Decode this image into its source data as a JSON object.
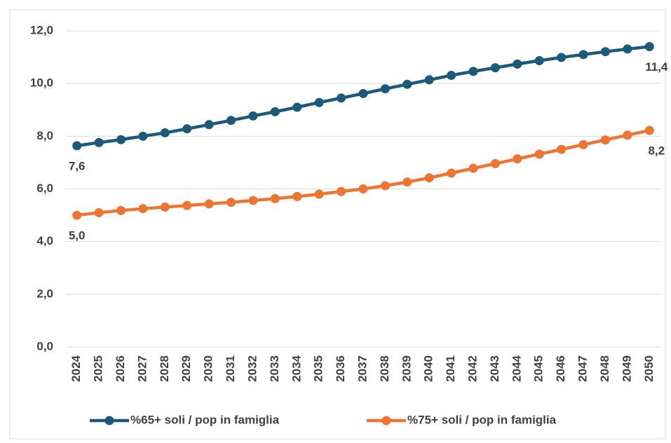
{
  "chart_data": {
    "type": "line",
    "categories": [
      "2024",
      "2025",
      "2026",
      "2027",
      "2028",
      "2029",
      "2030",
      "2031",
      "2032",
      "2033",
      "2034",
      "2035",
      "2036",
      "2037",
      "2038",
      "2039",
      "2040",
      "2041",
      "2042",
      "2043",
      "2044",
      "2045",
      "2046",
      "2047",
      "2048",
      "2049",
      "2050"
    ],
    "series": [
      {
        "name": "%65+ soli / pop in famiglia",
        "color": "#1b5a78",
        "values": [
          7.64,
          7.76,
          7.87,
          8.0,
          8.13,
          8.28,
          8.44,
          8.6,
          8.77,
          8.93,
          9.1,
          9.28,
          9.45,
          9.62,
          9.8,
          9.97,
          10.14,
          10.31,
          10.46,
          10.6,
          10.74,
          10.87,
          10.99,
          11.1,
          11.21,
          11.31,
          11.4
        ],
        "value_labels": [
          "7,6",
          null,
          null,
          null,
          null,
          null,
          null,
          null,
          null,
          null,
          null,
          null,
          null,
          null,
          null,
          null,
          null,
          null,
          null,
          null,
          null,
          null,
          null,
          null,
          null,
          null,
          "11,4"
        ]
      },
      {
        "name": "%75+ soli / pop in famiglia",
        "color": "#ee7434",
        "values": [
          5.0,
          5.1,
          5.18,
          5.25,
          5.31,
          5.37,
          5.43,
          5.49,
          5.56,
          5.63,
          5.71,
          5.8,
          5.9,
          6.0,
          6.12,
          6.26,
          6.42,
          6.6,
          6.78,
          6.96,
          7.14,
          7.32,
          7.5,
          7.68,
          7.86,
          8.04,
          8.22
        ],
        "value_labels": [
          "5,0",
          null,
          null,
          null,
          null,
          null,
          null,
          null,
          null,
          null,
          null,
          null,
          null,
          null,
          null,
          null,
          null,
          null,
          null,
          null,
          null,
          null,
          null,
          null,
          null,
          null,
          "8,2"
        ]
      }
    ],
    "ylim": [
      0,
      12
    ],
    "yticks": [
      {
        "value": 0,
        "label": "0,0"
      },
      {
        "value": 2,
        "label": "2,0"
      },
      {
        "value": 4,
        "label": "4,0"
      },
      {
        "value": 6,
        "label": "6,0"
      },
      {
        "value": 8,
        "label": "8,0"
      },
      {
        "value": 10,
        "label": "10,0"
      },
      {
        "value": 12,
        "label": "12,0"
      }
    ],
    "grid": true,
    "legend": "bottom"
  }
}
